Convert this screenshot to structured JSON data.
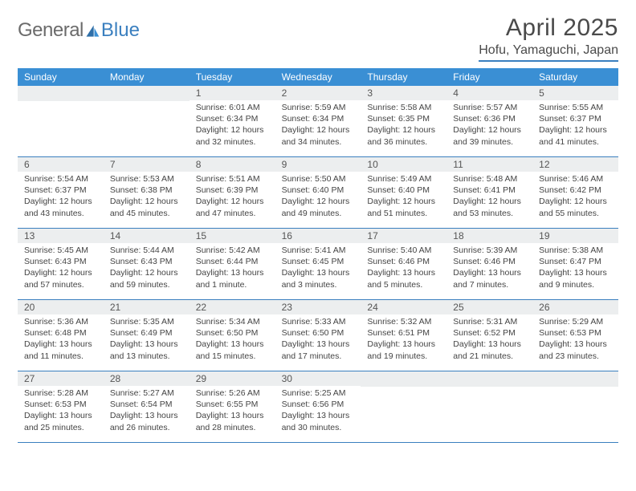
{
  "brand": {
    "word1": "General",
    "word2": "Blue"
  },
  "title": "April 2025",
  "location": "Hofu, Yamaguchi, Japan",
  "accent_color": "#3a8fd4",
  "rule_color": "#3a7fbf",
  "bg_shade": "#eceeef",
  "day_headers": [
    "Sunday",
    "Monday",
    "Tuesday",
    "Wednesday",
    "Thursday",
    "Friday",
    "Saturday"
  ],
  "weeks": [
    [
      null,
      null,
      {
        "n": "1",
        "sunrise": "Sunrise: 6:01 AM",
        "sunset": "Sunset: 6:34 PM",
        "daylight": "Daylight: 12 hours and 32 minutes."
      },
      {
        "n": "2",
        "sunrise": "Sunrise: 5:59 AM",
        "sunset": "Sunset: 6:34 PM",
        "daylight": "Daylight: 12 hours and 34 minutes."
      },
      {
        "n": "3",
        "sunrise": "Sunrise: 5:58 AM",
        "sunset": "Sunset: 6:35 PM",
        "daylight": "Daylight: 12 hours and 36 minutes."
      },
      {
        "n": "4",
        "sunrise": "Sunrise: 5:57 AM",
        "sunset": "Sunset: 6:36 PM",
        "daylight": "Daylight: 12 hours and 39 minutes."
      },
      {
        "n": "5",
        "sunrise": "Sunrise: 5:55 AM",
        "sunset": "Sunset: 6:37 PM",
        "daylight": "Daylight: 12 hours and 41 minutes."
      }
    ],
    [
      {
        "n": "6",
        "sunrise": "Sunrise: 5:54 AM",
        "sunset": "Sunset: 6:37 PM",
        "daylight": "Daylight: 12 hours and 43 minutes."
      },
      {
        "n": "7",
        "sunrise": "Sunrise: 5:53 AM",
        "sunset": "Sunset: 6:38 PM",
        "daylight": "Daylight: 12 hours and 45 minutes."
      },
      {
        "n": "8",
        "sunrise": "Sunrise: 5:51 AM",
        "sunset": "Sunset: 6:39 PM",
        "daylight": "Daylight: 12 hours and 47 minutes."
      },
      {
        "n": "9",
        "sunrise": "Sunrise: 5:50 AM",
        "sunset": "Sunset: 6:40 PM",
        "daylight": "Daylight: 12 hours and 49 minutes."
      },
      {
        "n": "10",
        "sunrise": "Sunrise: 5:49 AM",
        "sunset": "Sunset: 6:40 PM",
        "daylight": "Daylight: 12 hours and 51 minutes."
      },
      {
        "n": "11",
        "sunrise": "Sunrise: 5:48 AM",
        "sunset": "Sunset: 6:41 PM",
        "daylight": "Daylight: 12 hours and 53 minutes."
      },
      {
        "n": "12",
        "sunrise": "Sunrise: 5:46 AM",
        "sunset": "Sunset: 6:42 PM",
        "daylight": "Daylight: 12 hours and 55 minutes."
      }
    ],
    [
      {
        "n": "13",
        "sunrise": "Sunrise: 5:45 AM",
        "sunset": "Sunset: 6:43 PM",
        "daylight": "Daylight: 12 hours and 57 minutes."
      },
      {
        "n": "14",
        "sunrise": "Sunrise: 5:44 AM",
        "sunset": "Sunset: 6:43 PM",
        "daylight": "Daylight: 12 hours and 59 minutes."
      },
      {
        "n": "15",
        "sunrise": "Sunrise: 5:42 AM",
        "sunset": "Sunset: 6:44 PM",
        "daylight": "Daylight: 13 hours and 1 minute."
      },
      {
        "n": "16",
        "sunrise": "Sunrise: 5:41 AM",
        "sunset": "Sunset: 6:45 PM",
        "daylight": "Daylight: 13 hours and 3 minutes."
      },
      {
        "n": "17",
        "sunrise": "Sunrise: 5:40 AM",
        "sunset": "Sunset: 6:46 PM",
        "daylight": "Daylight: 13 hours and 5 minutes."
      },
      {
        "n": "18",
        "sunrise": "Sunrise: 5:39 AM",
        "sunset": "Sunset: 6:46 PM",
        "daylight": "Daylight: 13 hours and 7 minutes."
      },
      {
        "n": "19",
        "sunrise": "Sunrise: 5:38 AM",
        "sunset": "Sunset: 6:47 PM",
        "daylight": "Daylight: 13 hours and 9 minutes."
      }
    ],
    [
      {
        "n": "20",
        "sunrise": "Sunrise: 5:36 AM",
        "sunset": "Sunset: 6:48 PM",
        "daylight": "Daylight: 13 hours and 11 minutes."
      },
      {
        "n": "21",
        "sunrise": "Sunrise: 5:35 AM",
        "sunset": "Sunset: 6:49 PM",
        "daylight": "Daylight: 13 hours and 13 minutes."
      },
      {
        "n": "22",
        "sunrise": "Sunrise: 5:34 AM",
        "sunset": "Sunset: 6:50 PM",
        "daylight": "Daylight: 13 hours and 15 minutes."
      },
      {
        "n": "23",
        "sunrise": "Sunrise: 5:33 AM",
        "sunset": "Sunset: 6:50 PM",
        "daylight": "Daylight: 13 hours and 17 minutes."
      },
      {
        "n": "24",
        "sunrise": "Sunrise: 5:32 AM",
        "sunset": "Sunset: 6:51 PM",
        "daylight": "Daylight: 13 hours and 19 minutes."
      },
      {
        "n": "25",
        "sunrise": "Sunrise: 5:31 AM",
        "sunset": "Sunset: 6:52 PM",
        "daylight": "Daylight: 13 hours and 21 minutes."
      },
      {
        "n": "26",
        "sunrise": "Sunrise: 5:29 AM",
        "sunset": "Sunset: 6:53 PM",
        "daylight": "Daylight: 13 hours and 23 minutes."
      }
    ],
    [
      {
        "n": "27",
        "sunrise": "Sunrise: 5:28 AM",
        "sunset": "Sunset: 6:53 PM",
        "daylight": "Daylight: 13 hours and 25 minutes."
      },
      {
        "n": "28",
        "sunrise": "Sunrise: 5:27 AM",
        "sunset": "Sunset: 6:54 PM",
        "daylight": "Daylight: 13 hours and 26 minutes."
      },
      {
        "n": "29",
        "sunrise": "Sunrise: 5:26 AM",
        "sunset": "Sunset: 6:55 PM",
        "daylight": "Daylight: 13 hours and 28 minutes."
      },
      {
        "n": "30",
        "sunrise": "Sunrise: 5:25 AM",
        "sunset": "Sunset: 6:56 PM",
        "daylight": "Daylight: 13 hours and 30 minutes."
      },
      null,
      null,
      null
    ]
  ]
}
